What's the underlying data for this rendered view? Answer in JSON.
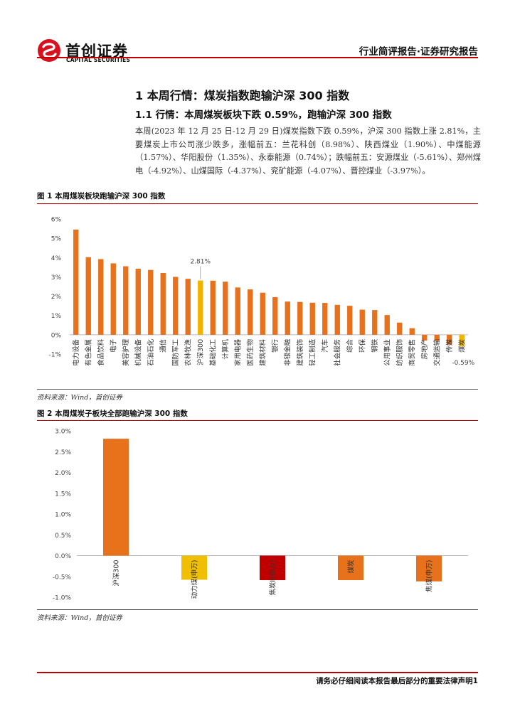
{
  "header": {
    "logo_cn": "首创证券",
    "logo_en": "CAPITAL SECURITIES",
    "title": "行业简评报告·证券研究报告",
    "colors": {
      "brand_red": "#d7111e",
      "rule": "#c00000"
    }
  },
  "section": {
    "h1": "1 本周行情：煤炭指数跑输沪深 300 指数",
    "h2": "1.1 行情：本周煤炭板块下跌 0.59%，跑输沪深 300 指数",
    "paragraph": "本周(2023 年 12 月 25 日-12 月 29 日)煤炭指数下跌 0.59%，沪深 300 指数上涨 2.81%，主要煤炭上市公司涨少跌多，涨幅前五：兰花科创（8.98%）、陕西煤业（1.90%）、中煤能源（1.57%）、华阳股份（1.35%）、永泰能源（0.74%）；跌幅前五：安源煤业（-5.61%）、郑州煤电（-4.92%）、山煤国际（-4.37%）、兖矿能源（-4.07%）、晋控煤业（-3.97%）。"
  },
  "figure1": {
    "title": "图 1 本周煤炭板块跑输沪深 300 指数",
    "source": "资料来源：Wind，首创证券"
  },
  "figure2": {
    "title": "图 2 本周煤炭子板块全部跑输沪深 300 指数",
    "source": "资料来源：Wind，首创证券"
  },
  "footer": {
    "text": "请务必仔细阅读本报告最后部分的重要法律声明1"
  },
  "chart_data": [
    {
      "type": "bar",
      "categories": [
        "电力设备",
        "有色金属",
        "食品饮料",
        "电子",
        "美容护理",
        "机械设备",
        "石油石化",
        "通信",
        "国防军工",
        "农林牧渔",
        "沪深300",
        "基础化工",
        "计算机",
        "家用电器",
        "医药生物",
        "建筑材料",
        "银行",
        "非银金融",
        "建筑装饰",
        "轻工制造",
        "汽车",
        "社会服务",
        "综合",
        "环保",
        "钢铁",
        "公用事业",
        "纺织服饰",
        "商贸零售",
        "房地产",
        "交通运输",
        "传媒",
        "煤炭"
      ],
      "values": [
        5.45,
        4.02,
        3.92,
        3.7,
        3.55,
        3.42,
        3.36,
        3.2,
        3.0,
        2.9,
        2.81,
        2.8,
        2.75,
        2.45,
        2.35,
        2.18,
        1.95,
        1.72,
        1.7,
        1.66,
        1.65,
        1.55,
        1.5,
        1.3,
        1.28,
        1.02,
        0.63,
        0.34,
        -0.3,
        -0.32,
        -0.5,
        -0.59
      ],
      "highlight": {
        "沪深300": "#f0b400",
        "煤炭": "#f0b400"
      },
      "bar_color": "#e8711b",
      "annotations": [
        {
          "category": "沪深300",
          "label": "2.81%"
        },
        {
          "category": "煤炭",
          "label": "-0.59%"
        }
      ],
      "ylim": [
        -1,
        6
      ],
      "yticks": [
        "-1%",
        "0%",
        "1%",
        "2%",
        "3%",
        "4%",
        "5%",
        "6%"
      ]
    },
    {
      "type": "bar",
      "categories": [
        "沪深300",
        "动力煤(申万)",
        "焦炭Ⅱ(申万)",
        "煤炭",
        "焦煤(申万)"
      ],
      "values": [
        2.81,
        -0.58,
        -0.59,
        -0.59,
        -0.62
      ],
      "colors": [
        "#e8711b",
        "#f0c000",
        "#c00000",
        "#e8711b",
        "#e8711b"
      ],
      "ylim": [
        -1.0,
        3.0
      ],
      "yticks": [
        "3.0%",
        "2.5%",
        "2.0%",
        "1.5%",
        "1.0%",
        "0.5%",
        "0.0%",
        "-0.5%",
        "-1.0%"
      ]
    }
  ]
}
